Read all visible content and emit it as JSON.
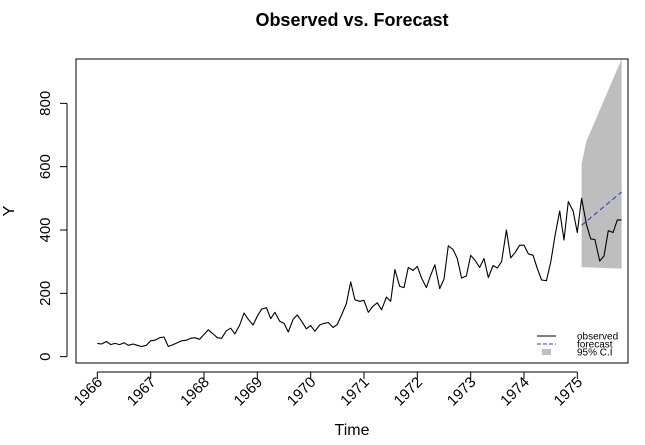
{
  "chart_data": {
    "type": "line",
    "title": "Observed vs. Forecast",
    "xlabel": "Time",
    "ylabel": "Y",
    "xlim": [
      1965.6,
      1975.95
    ],
    "ylim": [
      -20,
      940
    ],
    "x_ticks": [
      {
        "value": 1966,
        "label": "1966"
      },
      {
        "value": 1967,
        "label": "1967"
      },
      {
        "value": 1968,
        "label": "1968"
      },
      {
        "value": 1969,
        "label": "1969"
      },
      {
        "value": 1970,
        "label": "1970"
      },
      {
        "value": 1971,
        "label": "1971"
      },
      {
        "value": 1972,
        "label": "1972"
      },
      {
        "value": 1973,
        "label": "1973"
      },
      {
        "value": 1974,
        "label": "1974"
      },
      {
        "value": 1975,
        "label": "1975"
      }
    ],
    "y_ticks": [
      {
        "value": 0,
        "label": "0"
      },
      {
        "value": 200,
        "label": "200"
      },
      {
        "value": 400,
        "label": "400"
      },
      {
        "value": 600,
        "label": "600"
      },
      {
        "value": 800,
        "label": "800"
      }
    ],
    "legend_position": "bottom-right",
    "legend": [
      {
        "label": "observed",
        "style": "solid-line",
        "color": "#000000"
      },
      {
        "label": "forecast",
        "style": "dashed-line",
        "color": "#2a3fd6"
      },
      {
        "label": "95% C.I",
        "style": "filled-box",
        "color": "#bebebe"
      }
    ],
    "series": [
      {
        "name": "observed",
        "color": "#000000",
        "points": [
          [
            1966.0,
            42
          ],
          [
            1966.08,
            40
          ],
          [
            1966.17,
            48
          ],
          [
            1966.25,
            38
          ],
          [
            1966.33,
            42
          ],
          [
            1966.42,
            38
          ],
          [
            1966.5,
            44
          ],
          [
            1966.58,
            36
          ],
          [
            1966.67,
            40
          ],
          [
            1966.75,
            36
          ],
          [
            1966.83,
            32
          ],
          [
            1966.92,
            36
          ],
          [
            1967.0,
            50
          ],
          [
            1967.08,
            52
          ],
          [
            1967.17,
            60
          ],
          [
            1967.25,
            62
          ],
          [
            1967.33,
            32
          ],
          [
            1967.42,
            38
          ],
          [
            1967.5,
            44
          ],
          [
            1967.58,
            50
          ],
          [
            1967.67,
            52
          ],
          [
            1967.75,
            58
          ],
          [
            1967.83,
            60
          ],
          [
            1967.92,
            55
          ],
          [
            1968.0,
            70
          ],
          [
            1968.08,
            85
          ],
          [
            1968.17,
            72
          ],
          [
            1968.25,
            60
          ],
          [
            1968.33,
            58
          ],
          [
            1968.42,
            82
          ],
          [
            1968.5,
            90
          ],
          [
            1968.58,
            72
          ],
          [
            1968.67,
            100
          ],
          [
            1968.75,
            138
          ],
          [
            1968.83,
            118
          ],
          [
            1968.92,
            100
          ],
          [
            1969.0,
            128
          ],
          [
            1969.08,
            150
          ],
          [
            1969.17,
            155
          ],
          [
            1969.25,
            120
          ],
          [
            1969.33,
            140
          ],
          [
            1969.42,
            112
          ],
          [
            1969.5,
            105
          ],
          [
            1969.58,
            78
          ],
          [
            1969.67,
            118
          ],
          [
            1969.75,
            132
          ],
          [
            1969.83,
            112
          ],
          [
            1969.92,
            88
          ],
          [
            1970.0,
            98
          ],
          [
            1970.08,
            80
          ],
          [
            1970.17,
            100
          ],
          [
            1970.25,
            105
          ],
          [
            1970.33,
            108
          ],
          [
            1970.42,
            92
          ],
          [
            1970.5,
            102
          ],
          [
            1970.58,
            132
          ],
          [
            1970.67,
            168
          ],
          [
            1970.75,
            236
          ],
          [
            1970.83,
            180
          ],
          [
            1970.92,
            175
          ],
          [
            1971.0,
            178
          ],
          [
            1971.08,
            140
          ],
          [
            1971.17,
            160
          ],
          [
            1971.25,
            170
          ],
          [
            1971.33,
            148
          ],
          [
            1971.42,
            188
          ],
          [
            1971.5,
            175
          ],
          [
            1971.58,
            275
          ],
          [
            1971.67,
            222
          ],
          [
            1971.75,
            218
          ],
          [
            1971.83,
            282
          ],
          [
            1971.92,
            272
          ],
          [
            1972.0,
            285
          ],
          [
            1972.08,
            248
          ],
          [
            1972.17,
            218
          ],
          [
            1972.25,
            258
          ],
          [
            1972.33,
            290
          ],
          [
            1972.42,
            215
          ],
          [
            1972.5,
            245
          ],
          [
            1972.58,
            350
          ],
          [
            1972.67,
            338
          ],
          [
            1972.75,
            310
          ],
          [
            1972.83,
            248
          ],
          [
            1972.92,
            255
          ],
          [
            1973.0,
            320
          ],
          [
            1973.08,
            305
          ],
          [
            1973.17,
            282
          ],
          [
            1973.25,
            310
          ],
          [
            1973.33,
            250
          ],
          [
            1973.42,
            288
          ],
          [
            1973.5,
            280
          ],
          [
            1973.58,
            300
          ],
          [
            1973.67,
            400
          ],
          [
            1973.75,
            312
          ],
          [
            1973.83,
            328
          ],
          [
            1973.92,
            352
          ],
          [
            1974.0,
            352
          ],
          [
            1974.08,
            325
          ],
          [
            1974.17,
            320
          ],
          [
            1974.25,
            278
          ],
          [
            1974.33,
            242
          ],
          [
            1974.42,
            240
          ],
          [
            1974.5,
            298
          ],
          [
            1974.58,
            380
          ],
          [
            1974.67,
            460
          ],
          [
            1974.75,
            368
          ],
          [
            1974.83,
            490
          ],
          [
            1974.92,
            460
          ],
          [
            1975.0,
            392
          ],
          [
            1975.08,
            500
          ],
          [
            1975.17,
            418
          ],
          [
            1975.25,
            372
          ],
          [
            1975.33,
            370
          ],
          [
            1975.42,
            302
          ],
          [
            1975.5,
            318
          ],
          [
            1975.58,
            398
          ],
          [
            1975.67,
            392
          ],
          [
            1975.75,
            432
          ],
          [
            1975.83,
            432
          ]
        ]
      },
      {
        "name": "forecast",
        "color": "#2a3fd6",
        "points": [
          [
            1975.08,
            415
          ],
          [
            1975.83,
            520
          ]
        ]
      }
    ],
    "ci_band": {
      "name": "95% C.I",
      "color": "#bebebe",
      "x": [
        1975.08,
        1975.83
      ],
      "lower": [
        283,
        278
      ],
      "upper": [
        610,
        940
      ],
      "upper_knee": [
        1975.17,
        680
      ]
    }
  }
}
